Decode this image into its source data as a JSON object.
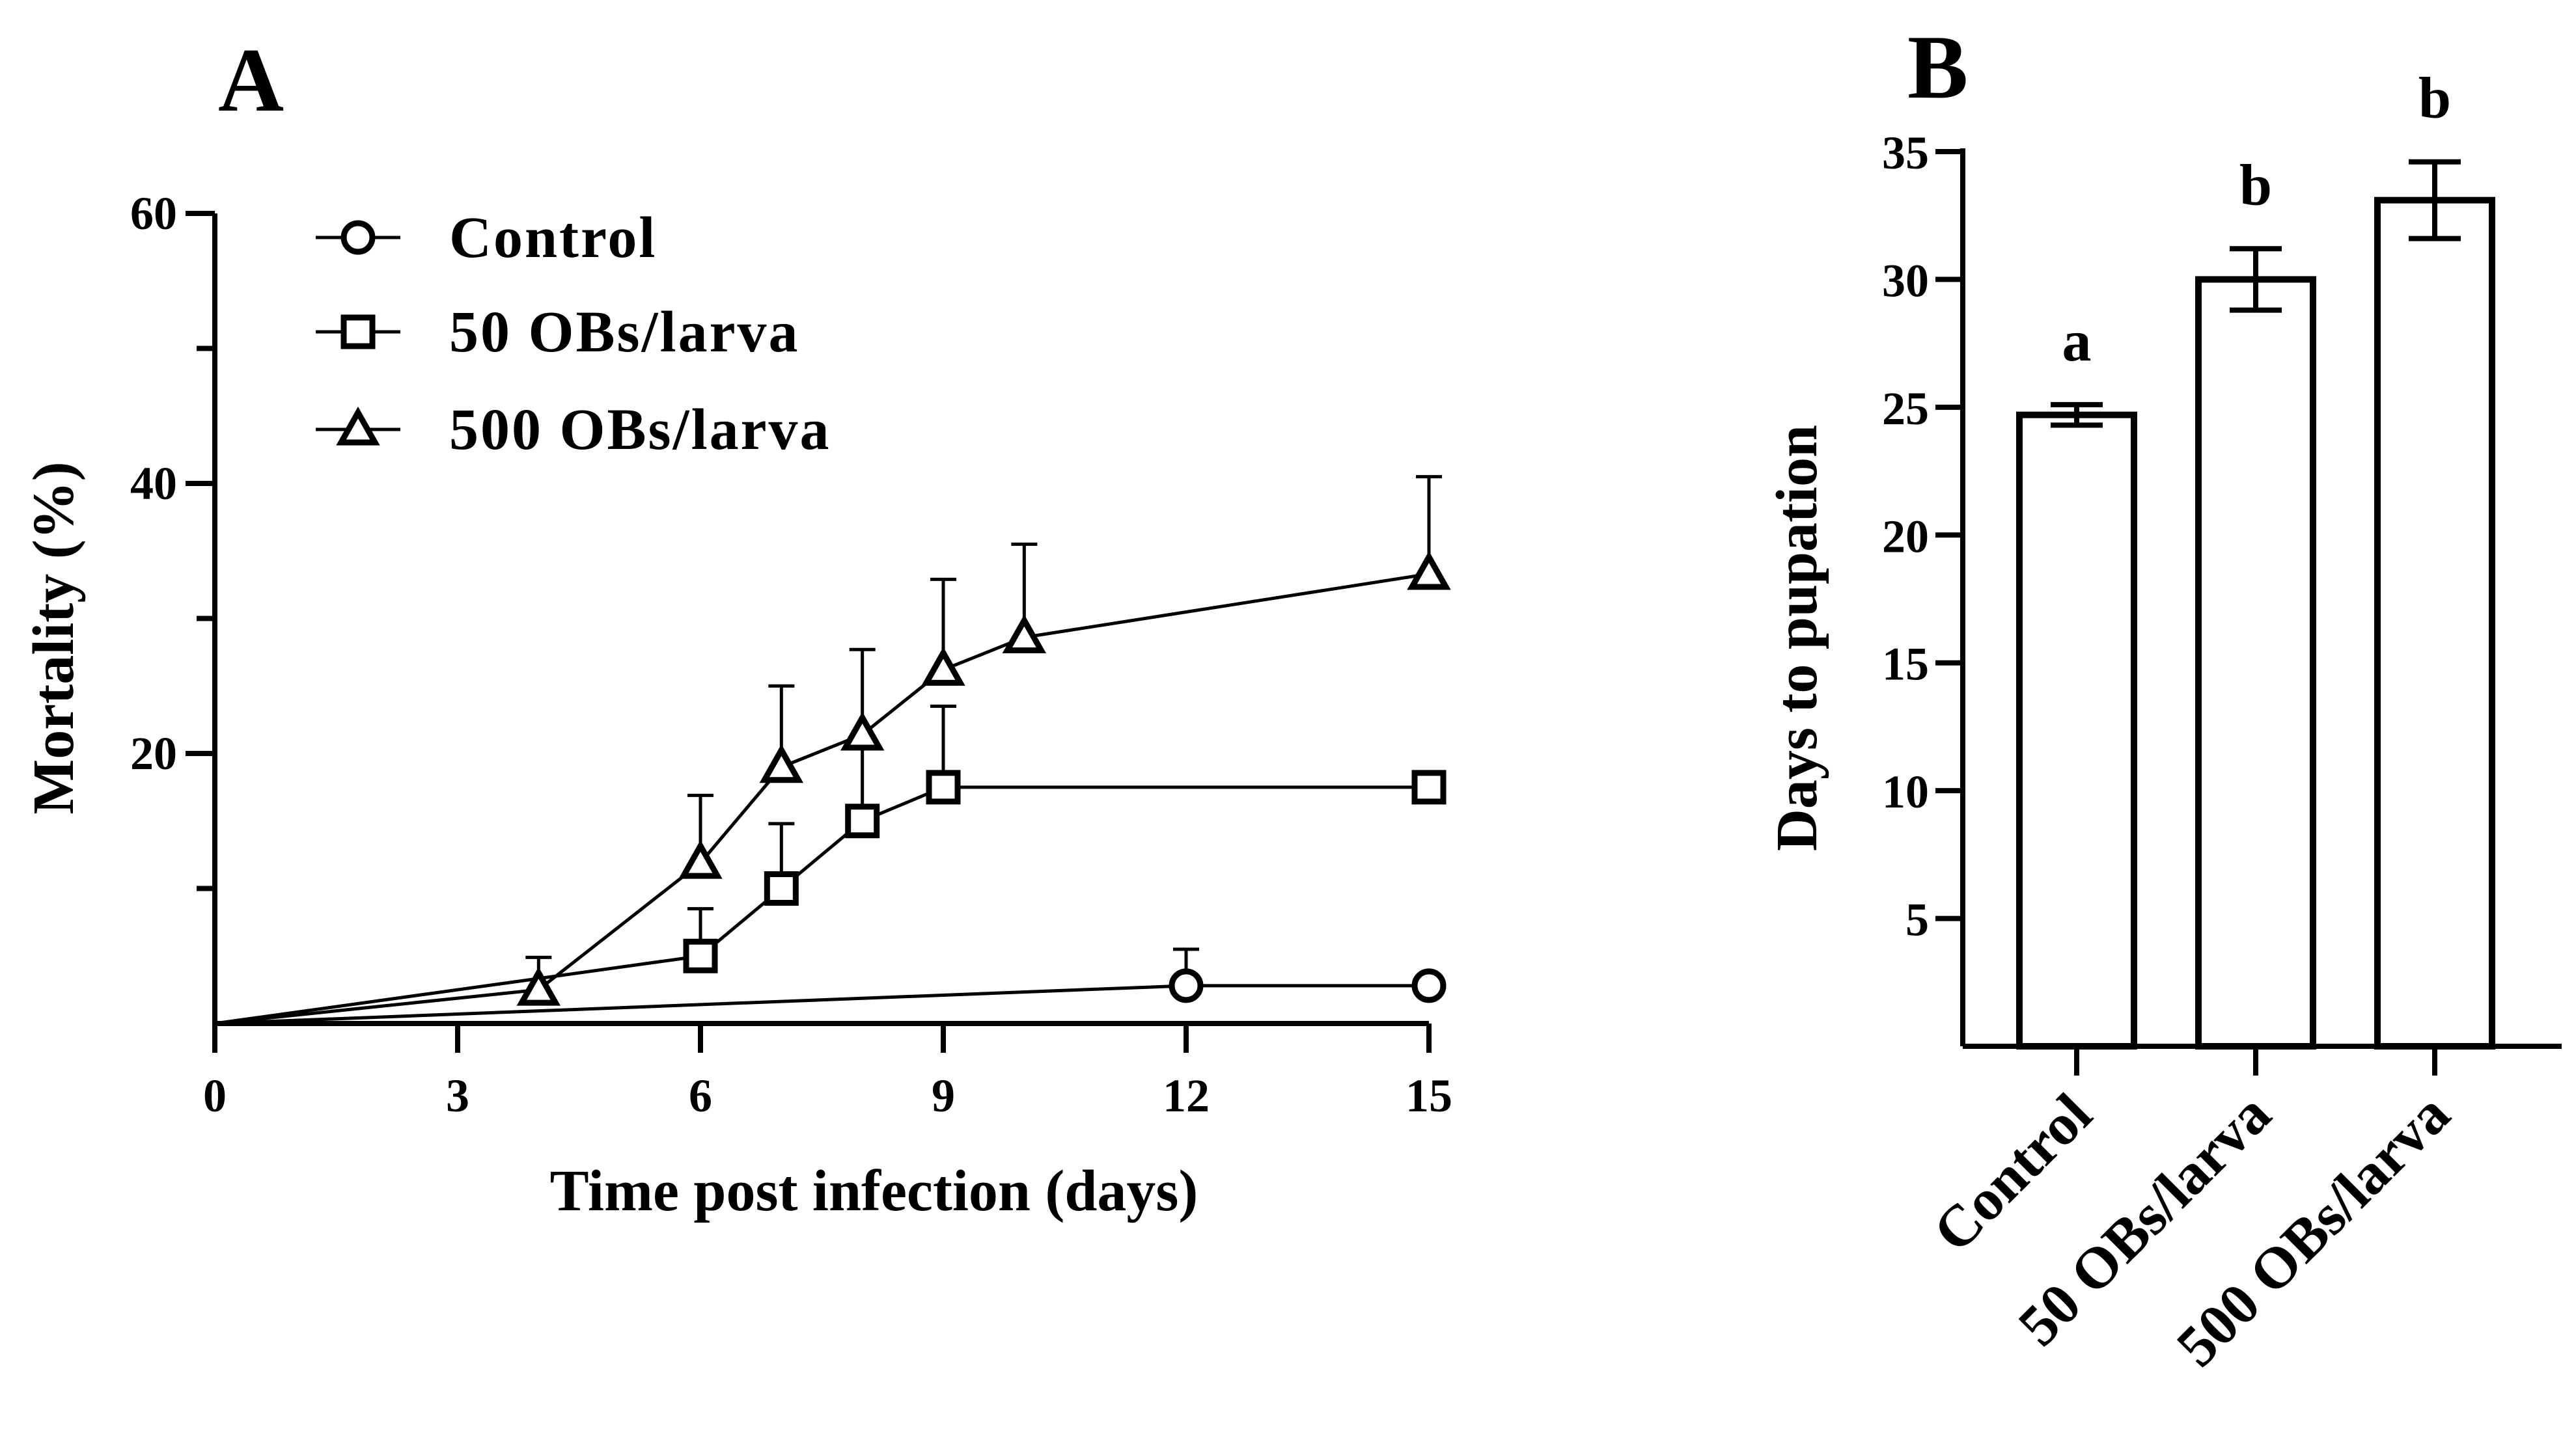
{
  "chart_data": [
    {
      "panel": "A",
      "type": "line",
      "xlabel": "Time post infection (days)",
      "ylabel": "Mortality (%)",
      "xlim": [
        0,
        15
      ],
      "ylim": [
        0,
        60
      ],
      "x_ticks": [
        0,
        3,
        6,
        9,
        12,
        15
      ],
      "y_ticks": [
        20,
        40,
        60
      ],
      "y_minor_ticks": [
        10,
        30,
        50
      ],
      "legend_position": "top-left",
      "series": [
        {
          "name": "Control",
          "marker": "circle",
          "points": [
            {
              "x": 0,
              "y": 0
            },
            {
              "x": 12,
              "y": 2.8,
              "err": 2.7
            },
            {
              "x": 15,
              "y": 2.8
            }
          ]
        },
        {
          "name": "50 OBs/larva",
          "marker": "square",
          "points": [
            {
              "x": 0,
              "y": 0
            },
            {
              "x": 6,
              "y": 5.0,
              "err": 3.5
            },
            {
              "x": 7,
              "y": 10.0,
              "err": 4.8
            },
            {
              "x": 8,
              "y": 15.0,
              "err": 5.6
            },
            {
              "x": 9,
              "y": 17.5,
              "err": 6.0
            },
            {
              "x": 15,
              "y": 17.5
            }
          ]
        },
        {
          "name": "500 OBs/larva",
          "marker": "triangle",
          "points": [
            {
              "x": 0,
              "y": 0
            },
            {
              "x": 4,
              "y": 2.5,
              "err": 2.4
            },
            {
              "x": 6,
              "y": 11.9,
              "err": 5.0
            },
            {
              "x": 7,
              "y": 19.0,
              "err": 6.0
            },
            {
              "x": 8,
              "y": 21.4,
              "err": 6.3
            },
            {
              "x": 9,
              "y": 26.2,
              "err": 6.7
            },
            {
              "x": 10,
              "y": 28.6,
              "err": 6.9
            },
            {
              "x": 15,
              "y": 33.3,
              "err": 7.2
            }
          ]
        }
      ]
    },
    {
      "panel": "B",
      "type": "bar",
      "ylabel": "Days to pupation",
      "ylim": [
        0,
        35
      ],
      "y_ticks": [
        5,
        10,
        15,
        20,
        25,
        30,
        35
      ],
      "categories": [
        "Control",
        "50 OBs/larva",
        "500 OBs/larva"
      ],
      "values": [
        24.7,
        30.0,
        33.1
      ],
      "errors": [
        0.4,
        1.2,
        1.5
      ],
      "significance": [
        "a",
        "b",
        "b"
      ]
    }
  ]
}
